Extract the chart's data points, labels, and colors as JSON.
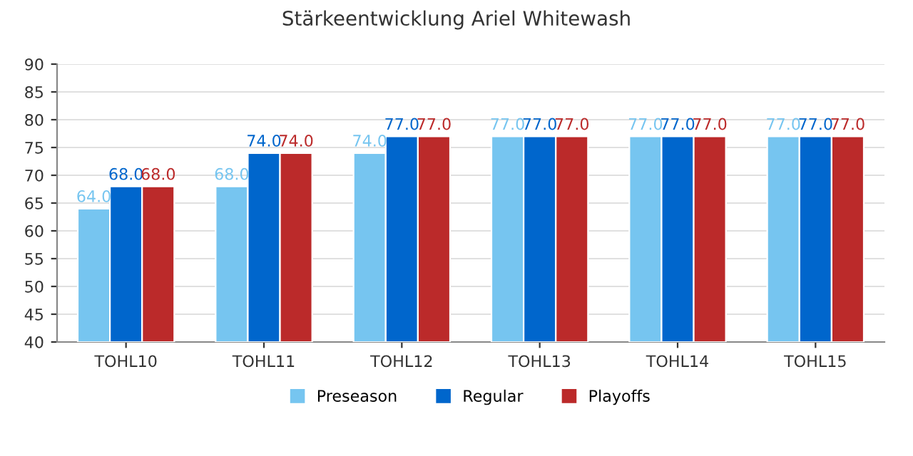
{
  "chart_data": {
    "type": "bar",
    "title": "Stärkeentwicklung Ariel Whitewash",
    "categories": [
      "TOHL10",
      "TOHL11",
      "TOHL12",
      "TOHL13",
      "TOHL14",
      "TOHL15"
    ],
    "series": [
      {
        "name": "Preseason",
        "color": "#76c5f0",
        "values": [
          64,
          68,
          74,
          77,
          77,
          77
        ],
        "value_labels": [
          "64.0",
          "68.0",
          "74.0",
          "77.0",
          "77.0",
          "77.0"
        ]
      },
      {
        "name": "Regular",
        "color": "#0066cc",
        "values": [
          68,
          74,
          77,
          77,
          77,
          77
        ],
        "value_labels": [
          "68.0",
          "74.0",
          "77.0",
          "77.0",
          "77.0",
          "77.0"
        ]
      },
      {
        "name": "Playoffs",
        "color": "#bb2a2a",
        "values": [
          68,
          74,
          77,
          77,
          77,
          77
        ],
        "value_labels": [
          "68.0",
          "74.0",
          "77.0",
          "77.0",
          "77.0",
          "77.0"
        ]
      }
    ],
    "ylim": [
      40,
      90
    ],
    "yticks": [
      40,
      45,
      50,
      55,
      60,
      65,
      70,
      75,
      80,
      85,
      90
    ],
    "grid": "y",
    "legend": "bottom"
  }
}
